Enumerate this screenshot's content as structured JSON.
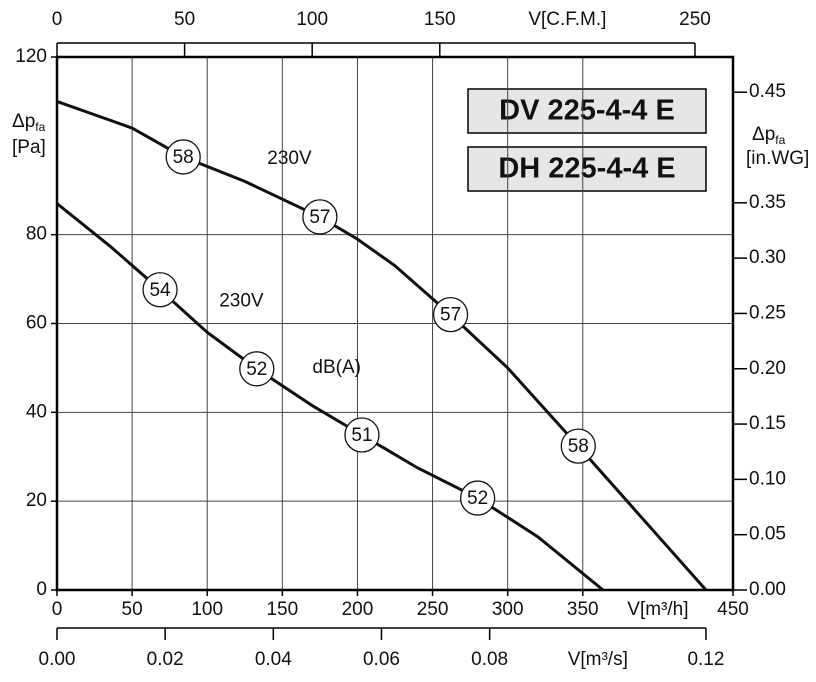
{
  "chart_data": {
    "type": "line",
    "model_labels": [
      "DV 225-4-4 E",
      "DH 225-4-4 E"
    ],
    "xlabel": "V[m³/h]",
    "xlim": [
      0,
      450
    ],
    "xticks": [
      0,
      50,
      100,
      150,
      200,
      250,
      300,
      350,
      450
    ],
    "x2label": "V[C.F.M.]",
    "x2lim": [
      0,
      264.9
    ],
    "x2ticks": [
      0,
      50,
      100,
      150,
      250
    ],
    "x3label": "V[m³/s]",
    "x3lim": [
      0,
      0.125
    ],
    "x3ticks": [
      {
        "value": 0,
        "label": "0.00"
      },
      {
        "value": 0.02,
        "label": "0.02"
      },
      {
        "value": 0.04,
        "label": "0.04"
      },
      {
        "value": 0.06,
        "label": "0.06"
      },
      {
        "value": 0.08,
        "label": "0.08"
      },
      {
        "value": 0.12,
        "label": "0.12"
      }
    ],
    "ylabel": {
      "main": "Δp",
      "sub": "fa",
      "unit": "[Pa]"
    },
    "ylim": [
      0,
      120
    ],
    "yticks": [
      0,
      20,
      40,
      60,
      80,
      120
    ],
    "y2label": {
      "main": "Δp",
      "sub": "fa",
      "unit": "[in.WG]"
    },
    "y2lim": [
      0,
      0.4818
    ],
    "y2ticks": [
      {
        "value": 0,
        "label": "0.00"
      },
      {
        "value": 0.05,
        "label": "0.05"
      },
      {
        "value": 0.1,
        "label": "0.10"
      },
      {
        "value": 0.15,
        "label": "0.15"
      },
      {
        "value": 0.2,
        "label": "0.20"
      },
      {
        "value": 0.25,
        "label": "0.25"
      },
      {
        "value": 0.3,
        "label": "0.30"
      },
      {
        "value": 0.35,
        "label": "0.35"
      },
      {
        "value": 0.45,
        "label": "0.45"
      }
    ],
    "grid": true,
    "series": [
      {
        "color": "#111111",
        "x": [
          0,
          25,
          50,
          84,
          125,
          175,
          200,
          225,
          262,
          300,
          347,
          390,
          432
        ],
        "values": [
          110,
          107,
          104,
          97.5,
          92,
          84,
          79,
          73,
          62,
          50,
          32.4,
          16,
          0
        ],
        "noise": {
          "x": [
            84,
            175,
            262,
            347
          ],
          "y": [
            97.5,
            84,
            62,
            32.4
          ],
          "values": [
            58,
            57,
            57,
            58
          ]
        }
      },
      {
        "color": "#111111",
        "x": [
          0,
          35,
          68.6,
          100,
          133,
          170,
          203,
          240,
          280,
          320,
          363.5
        ],
        "values": [
          87,
          77.5,
          67.6,
          58,
          49.8,
          41.5,
          34.9,
          27.5,
          20.7,
          12,
          0
        ],
        "noise": {
          "x": [
            68.6,
            133,
            203,
            280
          ],
          "y": [
            67.6,
            49.8,
            34.9,
            20.7
          ],
          "values": [
            54,
            52,
            51,
            52
          ]
        }
      }
    ],
    "annotations": [
      {
        "text": "230V",
        "x": 140,
        "y": 97
      },
      {
        "text": "230V",
        "x": 108,
        "y": 65
      },
      {
        "text": "dB(A)",
        "x": 170,
        "y": 50
      }
    ]
  }
}
